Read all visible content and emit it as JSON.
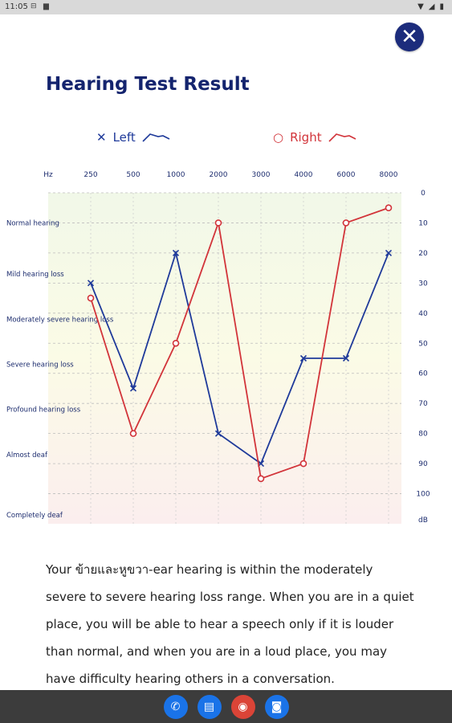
{
  "status_bar": {
    "time": "11:05"
  },
  "close_label": "✕",
  "title": "Hearing Test Result",
  "legend": {
    "left": "Left",
    "right": "Right"
  },
  "chart_data": {
    "type": "line",
    "x_unit": "Hz",
    "y_unit": "dB",
    "categories": [
      "250",
      "500",
      "1000",
      "2000",
      "3000",
      "4000",
      "6000",
      "8000"
    ],
    "series": [
      {
        "name": "Left",
        "marker": "x",
        "color": "#1f3a9a",
        "values": [
          30,
          65,
          20,
          80,
          90,
          55,
          55,
          20
        ]
      },
      {
        "name": "Right",
        "marker": "o",
        "color": "#d2343a",
        "values": [
          35,
          80,
          50,
          10,
          95,
          90,
          10,
          5
        ]
      }
    ],
    "y_ticks": [
      "0",
      "10",
      "20",
      "30",
      "40",
      "50",
      "60",
      "70",
      "80",
      "90",
      "100"
    ],
    "ylim": [
      0,
      110
    ],
    "zones": [
      {
        "label": "Normal hearing",
        "value": 10
      },
      {
        "label": "Mild hearing loss",
        "value": 27
      },
      {
        "label": "Moderately severe hearing loss",
        "value": 42
      },
      {
        "label": "Severe hearing loss",
        "value": 57
      },
      {
        "label": "Profound hearing loss",
        "value": 72
      },
      {
        "label": "Almost deaf",
        "value": 87
      },
      {
        "label": "Completely deaf",
        "value": 107
      }
    ],
    "background_gradient": [
      "#f1f8e8",
      "#fbfbe6",
      "#fbeeee"
    ],
    "grid": true
  },
  "description": "Your ข้ายและหูขวา-ear hearing is within the moderately severe to severe hearing loss range. When you are in a quiet place, you will be able to hear a speech only if it is louder than normal, and when you are in a loud place, you may have difficulty hearing others in a conversation.",
  "colors": {
    "title": "#14246e",
    "left": "#1f3a9a",
    "right": "#d2343a",
    "close_bg": "#1c2c7c"
  },
  "nav_apps": [
    {
      "name": "phone",
      "glyph": "✆",
      "color": "#1a73e8"
    },
    {
      "name": "messages",
      "glyph": "▤",
      "color": "#1a73e8"
    },
    {
      "name": "chrome",
      "glyph": "◉",
      "color": "#db4437"
    },
    {
      "name": "camera",
      "glyph": "◙",
      "color": "#1a73e8"
    }
  ]
}
